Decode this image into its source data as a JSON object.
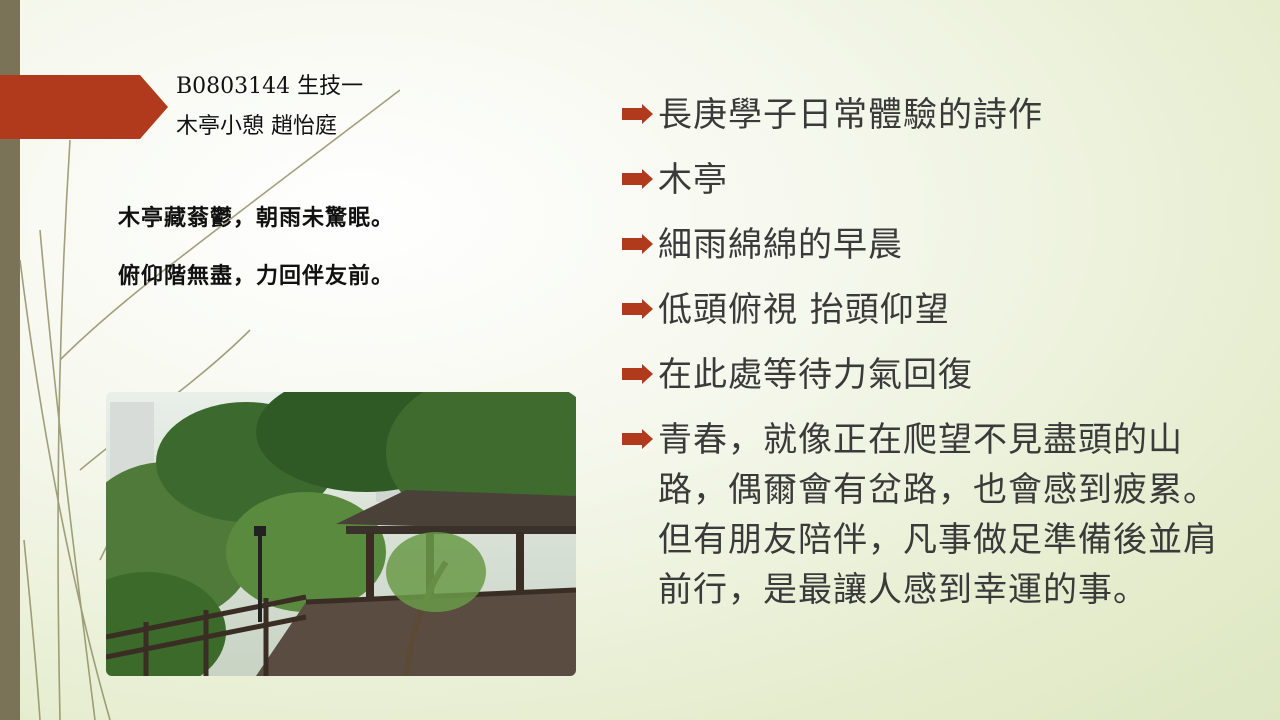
{
  "author": {
    "line1": "B0803144 生技一",
    "line2": "木亭小憩 趙怡庭"
  },
  "poem": {
    "lines": [
      "木亭藏蓊鬱，朝雨未驚眠。",
      "俯仰階無盡，力回伴友前。"
    ]
  },
  "bullets": [
    "長庚學子日常體驗的詩作",
    "木亭",
    "細雨綿綿的早晨",
    "低頭俯視 抬頭仰望",
    "在此處等待力氣回復",
    "青春，就像正在爬望不見盡頭的山路，偶爾會有岔路，也會感到疲累。但有朋友陪伴，凡事做足準備後並肩前行，是最讓人感到幸運的事。"
  ],
  "colors": {
    "accent": "#b23a1c",
    "sidebar": "#7a7357",
    "text": "#3a3a3a"
  },
  "icons": {
    "bullet": "arrow-bullet-icon"
  }
}
